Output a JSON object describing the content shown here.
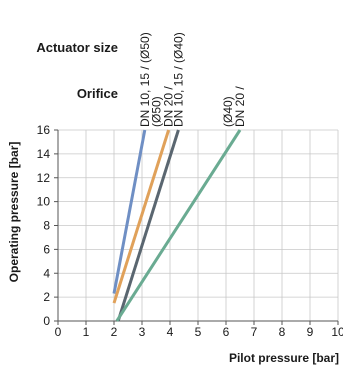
{
  "chart_data": {
    "type": "line",
    "header": {
      "actuator_label": "Actuator size",
      "orifice_label": "Orifice"
    },
    "xlabel": "Pilot pressure [bar]",
    "ylabel": "Operating pressure [bar]",
    "xlim": [
      0,
      10
    ],
    "ylim": [
      0,
      16
    ],
    "xticks": [
      "0",
      "1",
      "2",
      "3",
      "4",
      "5",
      "6",
      "7",
      "8",
      "9",
      "10"
    ],
    "yticks": [
      "0",
      "2",
      "4",
      "6",
      "8",
      "10",
      "12",
      "14",
      "16"
    ],
    "grid": true,
    "series": [
      {
        "color": "#6f8fc4",
        "points": [
          [
            2.0,
            2.3
          ],
          [
            3.1,
            16
          ]
        ]
      },
      {
        "color": "#e0a15a",
        "points": [
          [
            2.0,
            1.5
          ],
          [
            3.95,
            16
          ]
        ]
      },
      {
        "color": "#5a6670",
        "points": [
          [
            2.15,
            0
          ],
          [
            4.3,
            16
          ]
        ]
      },
      {
        "color": "#6aab92",
        "points": [
          [
            2.1,
            0
          ],
          [
            6.5,
            16
          ]
        ]
      }
    ],
    "column_labels": [
      {
        "text": "DN 10, 15 / (Ø50)",
        "x": 3.1
      },
      {
        "text": "DN 20 /",
        "x": 3.95
      },
      {
        "text": "(Ø50)",
        "x": 3.95
      },
      {
        "text": "DN 10, 15 / (Ø40)",
        "x": 4.3
      },
      {
        "text": "DN 20 /",
        "x": 6.5
      },
      {
        "text": "(Ø40)",
        "x": 6.5
      }
    ]
  }
}
